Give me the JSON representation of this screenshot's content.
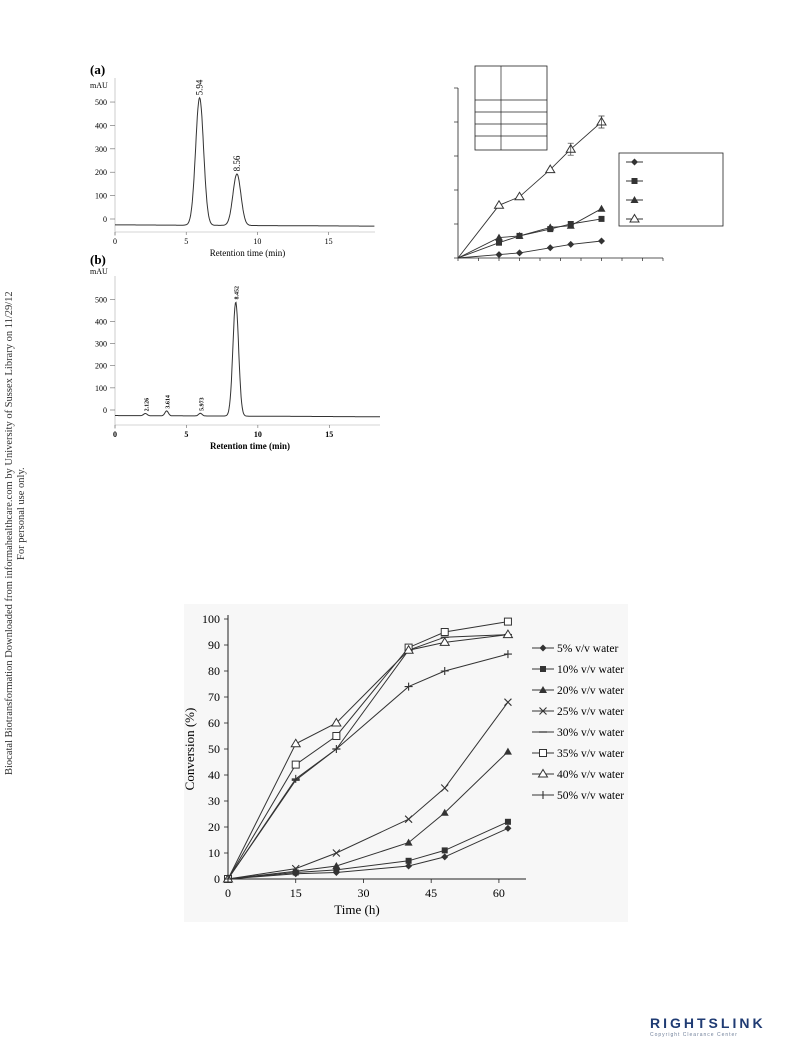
{
  "side_text": {
    "line1": "Biocatal Biotransformation Downloaded from informahealthcare.com by University of Sussex Library on 11/29/12",
    "line2": "For personal use only."
  },
  "panel_a": {
    "tag": "(a)",
    "y_unit": "mAU",
    "y_ticks": [
      0,
      100,
      200,
      300,
      400,
      500
    ],
    "x_ticks": [
      0,
      5,
      10,
      15
    ],
    "x_label": "Retention time (min)",
    "peaks": [
      {
        "label": "5.94",
        "rt": 5.94,
        "height": 545
      },
      {
        "label": "8.56",
        "rt": 8.56,
        "height": 220
      }
    ]
  },
  "panel_b": {
    "tag": "(b)",
    "y_unit": "mAU",
    "y_ticks": [
      0,
      100,
      200,
      300,
      400,
      500
    ],
    "x_ticks": [
      0,
      5,
      10,
      15
    ],
    "x_label": "Retention time (min)",
    "peaks": [
      {
        "label": "2.126",
        "rt": 2.126,
        "height": 10
      },
      {
        "label": "3.614",
        "rt": 3.614,
        "height": 22
      },
      {
        "label": "5.973",
        "rt": 5.973,
        "height": 12
      },
      {
        "label": "8.452",
        "rt": 8.452,
        "height": 515
      }
    ]
  },
  "colors": {
    "line": "#333333",
    "axis": "#222222"
  },
  "chart_data": [
    {
      "type": "line",
      "title": "",
      "xlabel": "",
      "ylabel": "",
      "x": [
        0,
        4,
        6,
        9,
        11,
        14
      ],
      "ylim": [
        0,
        100
      ],
      "xlim": [
        0,
        20
      ],
      "legend_placement": "center-right",
      "series": [
        {
          "marker": "diamond",
          "values": [
            0,
            2,
            3,
            6,
            8,
            10
          ]
        },
        {
          "marker": "square",
          "values": [
            0,
            9,
            13,
            17,
            20,
            23
          ]
        },
        {
          "marker": "triangle",
          "values": [
            0,
            12,
            13,
            18,
            19,
            29
          ]
        },
        {
          "marker": "open-triangle",
          "values": [
            0,
            31,
            36,
            52,
            64,
            80
          ]
        }
      ]
    },
    {
      "type": "line",
      "title": "",
      "xlabel": "Time (h)",
      "ylabel": "Conversion (%)",
      "x_ticks": [
        0,
        15,
        30,
        45,
        60
      ],
      "y_ticks": [
        0,
        10,
        20,
        30,
        40,
        50,
        60,
        70,
        80,
        90,
        100
      ],
      "xlim": [
        0,
        66
      ],
      "ylim": [
        0,
        100
      ],
      "legend_placement": "right",
      "x": [
        0,
        15,
        24,
        40,
        48,
        62
      ],
      "series": [
        {
          "name": "5% v/v water",
          "marker": "diamond",
          "values": [
            0,
            2,
            2.5,
            5,
            8.5,
            19.5
          ]
        },
        {
          "name": "10% v/v water",
          "marker": "square",
          "values": [
            0,
            2.5,
            3.5,
            7,
            11,
            22
          ]
        },
        {
          "name": "20% v/v water",
          "marker": "triangle",
          "values": [
            0,
            3,
            5,
            14,
            25.5,
            49
          ]
        },
        {
          "name": "25% v/v water",
          "marker": "x",
          "values": [
            0,
            4,
            10,
            23,
            35,
            68
          ]
        },
        {
          "name": "30% v/v water",
          "marker": "dash",
          "values": [
            0,
            38,
            50,
            88,
            93,
            94
          ]
        },
        {
          "name": "35% v/v water",
          "marker": "open-square",
          "values": [
            0,
            44,
            55,
            89,
            95,
            99
          ]
        },
        {
          "name": "40% v/v water",
          "marker": "open-triangle",
          "values": [
            0,
            52,
            60,
            88,
            91,
            94
          ]
        },
        {
          "name": "50% v/v water",
          "marker": "plus",
          "values": [
            0,
            38.5,
            50,
            74,
            80,
            86.5
          ]
        }
      ]
    }
  ],
  "rightslink": {
    "main": "RIGHTSLINK",
    "sub": "Copyright Clearance Center"
  }
}
